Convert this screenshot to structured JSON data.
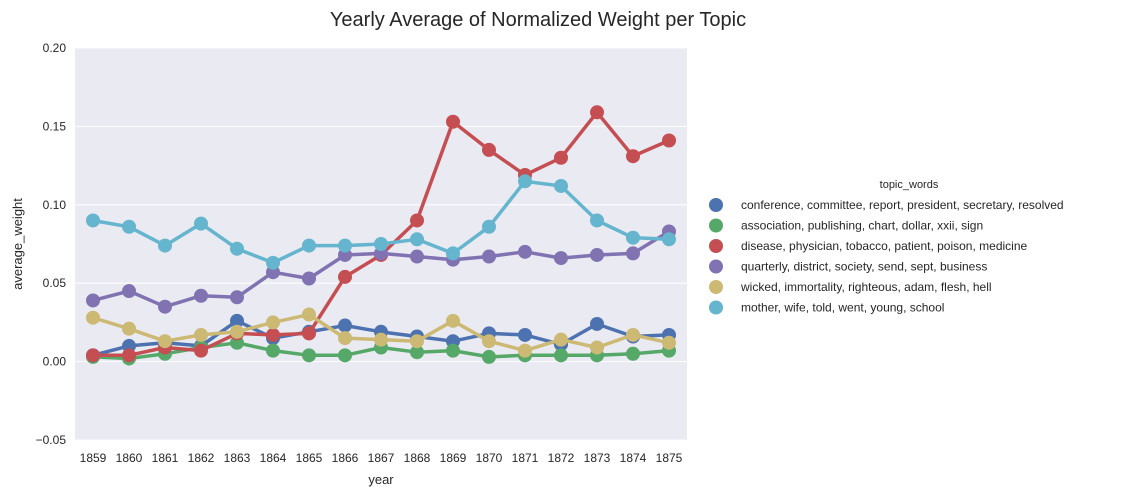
{
  "chart_data": {
    "type": "line",
    "title": "Yearly Average of Normalized Weight per Topic",
    "xlabel": "year",
    "ylabel": "average_weight",
    "categories": [
      "1859",
      "1860",
      "1861",
      "1862",
      "1863",
      "1864",
      "1865",
      "1866",
      "1867",
      "1868",
      "1869",
      "1870",
      "1871",
      "1872",
      "1873",
      "1874",
      "1875"
    ],
    "ylim": [
      -0.05,
      0.2
    ],
    "yticks": [
      -0.05,
      0.0,
      0.05,
      0.1,
      0.15,
      0.2
    ],
    "ytick_labels": [
      "−0.05",
      "0.00",
      "0.05",
      "0.10",
      "0.15",
      "0.20"
    ],
    "grid": true,
    "legend": {
      "title": "topic_words",
      "placement": "right"
    },
    "series": [
      {
        "name": "conference, committee, report, president, secretary, resolved",
        "color": "#4c72b0",
        "values": [
          0.004,
          0.01,
          0.012,
          0.01,
          0.026,
          0.015,
          0.019,
          0.023,
          0.019,
          0.016,
          0.013,
          0.018,
          0.017,
          0.011,
          0.024,
          0.016,
          0.017
        ]
      },
      {
        "name": "association, publishing, chart, dollar, xxii, sign",
        "color": "#55a868",
        "values": [
          0.003,
          0.002,
          0.005,
          0.009,
          0.012,
          0.007,
          0.004,
          0.004,
          0.009,
          0.006,
          0.007,
          0.003,
          0.004,
          0.004,
          0.004,
          0.005,
          0.007
        ]
      },
      {
        "name": "disease, physician, tobacco, patient, poison, medicine",
        "color": "#c44e52",
        "values": [
          0.004,
          0.004,
          0.009,
          0.007,
          0.018,
          0.017,
          0.018,
          0.054,
          0.068,
          0.09,
          0.153,
          0.135,
          0.119,
          0.13,
          0.159,
          0.131,
          0.141
        ]
      },
      {
        "name": "quarterly, district, society, send, sept, business",
        "color": "#8172b2",
        "values": [
          0.039,
          0.045,
          0.035,
          0.042,
          0.041,
          0.057,
          0.053,
          0.068,
          0.069,
          0.067,
          0.065,
          0.067,
          0.07,
          0.066,
          0.068,
          0.069,
          0.083
        ]
      },
      {
        "name": "wicked, immortality, righteous, adam, flesh, hell",
        "color": "#ccb974",
        "values": [
          0.028,
          0.021,
          0.013,
          0.017,
          0.019,
          0.025,
          0.03,
          0.015,
          0.014,
          0.013,
          0.026,
          0.013,
          0.007,
          0.014,
          0.009,
          0.017,
          0.012
        ]
      },
      {
        "name": "mother, wife, told, went, young, school",
        "color": "#64b5cd",
        "values": [
          0.09,
          0.086,
          0.074,
          0.088,
          0.072,
          0.063,
          0.074,
          0.074,
          0.075,
          0.078,
          0.069,
          0.086,
          0.115,
          0.112,
          0.09,
          0.079,
          0.078
        ]
      }
    ]
  }
}
